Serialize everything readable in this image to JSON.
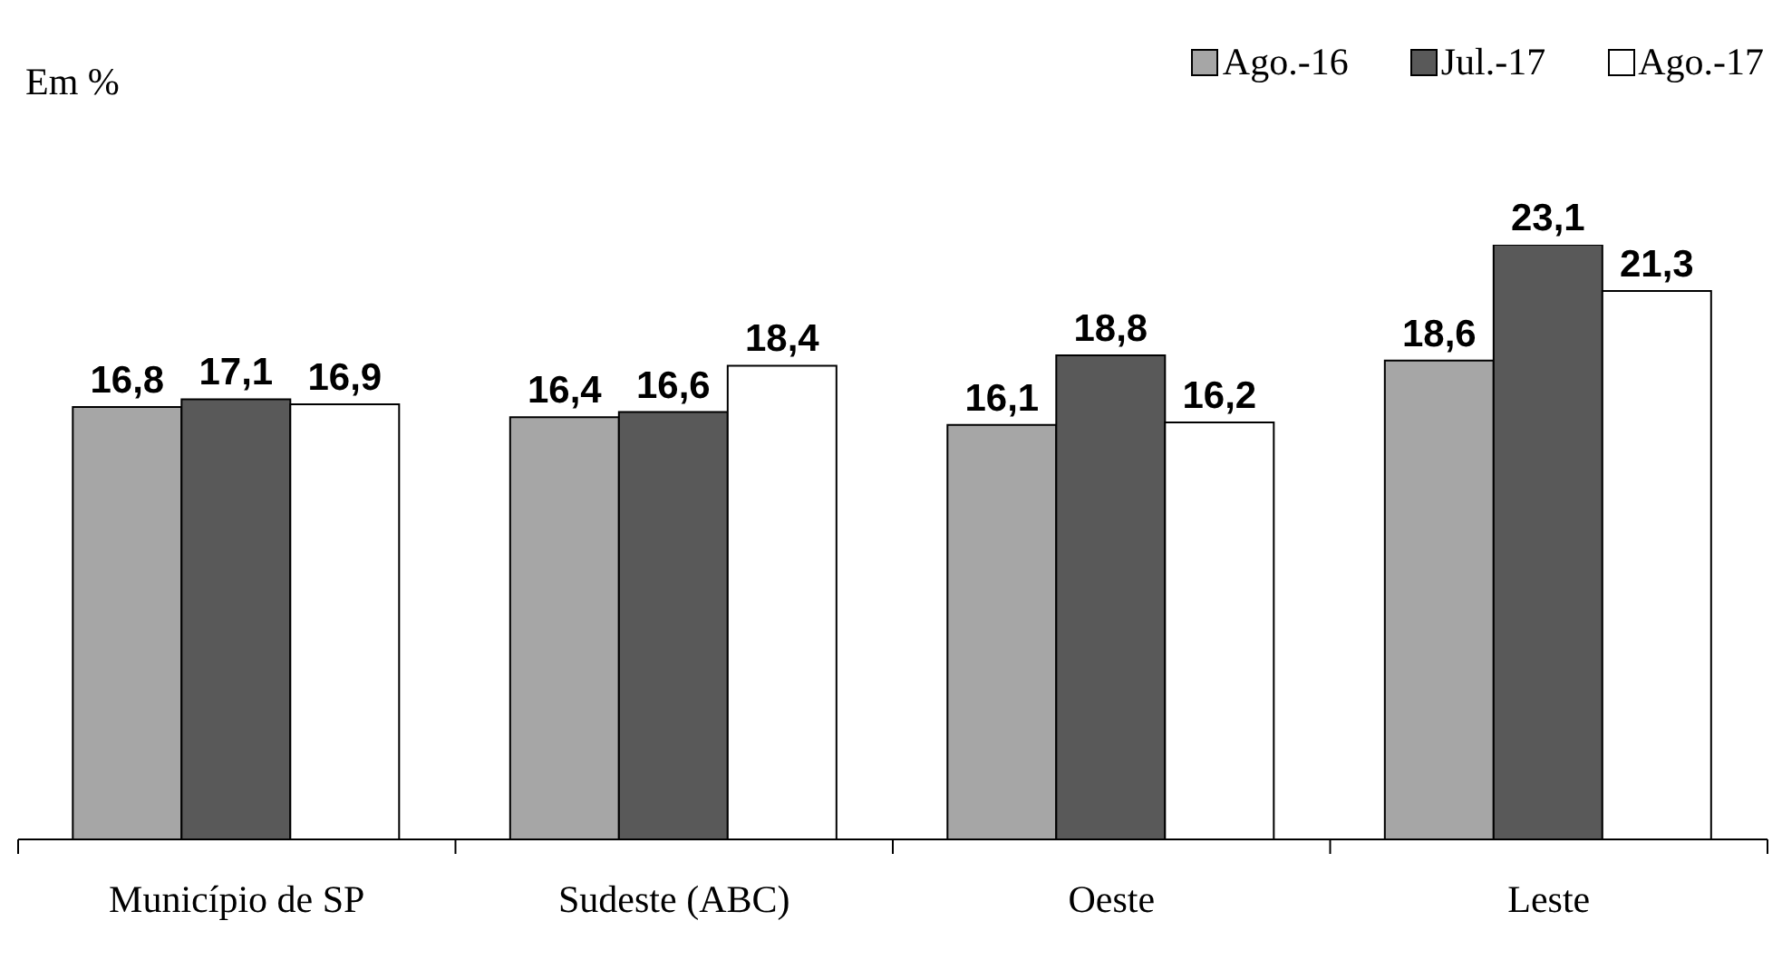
{
  "chart_data": {
    "type": "bar",
    "ylabel": "Em %",
    "categories": [
      "Município de SP",
      "Sudeste (ABC)",
      "Oeste",
      "Leste"
    ],
    "series": [
      {
        "name": "Ago.-16",
        "color": "#a6a6a6",
        "values": [
          16.8,
          16.4,
          16.1,
          18.6
        ],
        "value_labels": [
          "16,8",
          "16,4",
          "16,1",
          "18,6"
        ]
      },
      {
        "name": "Jul.-17",
        "color": "#595959",
        "values": [
          17.1,
          16.6,
          18.8,
          23.1
        ],
        "value_labels": [
          "17,1",
          "16,6",
          "18,8",
          "23,1"
        ]
      },
      {
        "name": "Ago.-17",
        "color": "#ffffff",
        "values": [
          16.9,
          18.4,
          16.2,
          21.3
        ],
        "value_labels": [
          "16,9",
          "18,4",
          "16,2",
          "21,3"
        ]
      }
    ],
    "legend": "top right",
    "grid": false
  }
}
